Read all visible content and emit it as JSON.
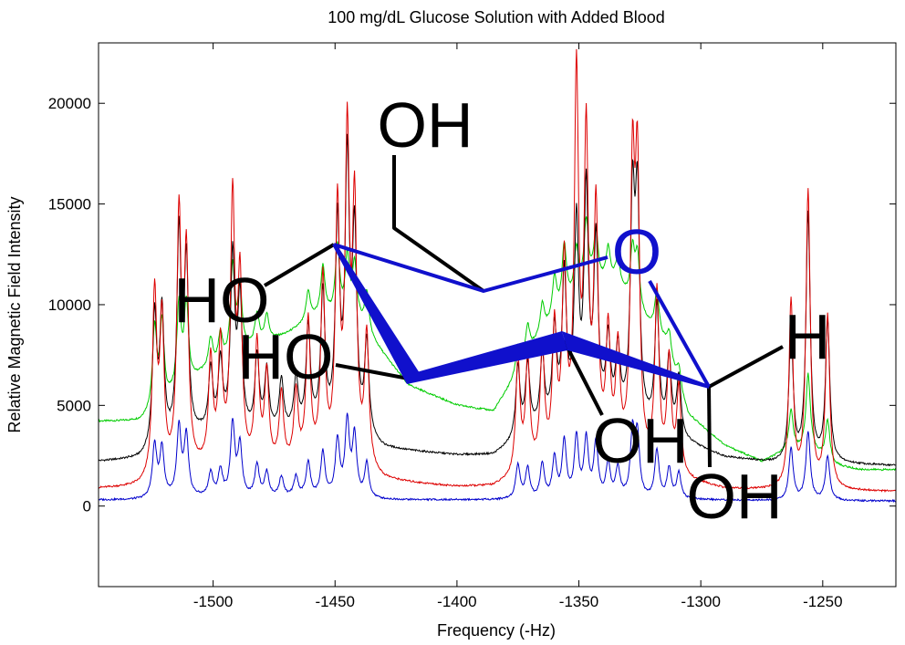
{
  "chart_data": {
    "type": "line",
    "title": "100 mg/dL Glucose Solution with Added Blood",
    "xlabel": "Frequency (-Hz)",
    "ylabel": "Relative Magnetic Field Intensity",
    "xlim": [
      -1547,
      -1220
    ],
    "ylim": [
      -4000,
      23000
    ],
    "x_ticks": [
      -1500,
      -1450,
      -1400,
      -1350,
      -1300,
      -1250
    ],
    "y_ticks": [
      0,
      5000,
      10000,
      15000,
      20000
    ],
    "x_tick_labels": [
      "-1500",
      "-1450",
      "-1400",
      "-1350",
      "-1300",
      "-1250"
    ],
    "y_tick_labels": [
      "0",
      "5000",
      "10000",
      "15000",
      "20000"
    ],
    "grid": false,
    "series": [
      {
        "color": "#00cc00",
        "baseline": [
          [
            -1547,
            4200
          ],
          [
            -1530,
            4200
          ],
          [
            -1520,
            5000
          ],
          [
            -1505,
            6500
          ],
          [
            -1495,
            7000
          ],
          [
            -1485,
            7800
          ],
          [
            -1470,
            8500
          ],
          [
            -1455,
            9500
          ],
          [
            -1440,
            9000
          ],
          [
            -1430,
            7500
          ],
          [
            -1420,
            6000
          ],
          [
            -1400,
            5000
          ],
          [
            -1385,
            4700
          ],
          [
            -1378,
            6000
          ],
          [
            -1368,
            8000
          ],
          [
            -1355,
            10000
          ],
          [
            -1345,
            11000
          ],
          [
            -1335,
            11000
          ],
          [
            -1325,
            9500
          ],
          [
            -1315,
            8000
          ],
          [
            -1305,
            4500
          ],
          [
            -1290,
            3000
          ],
          [
            -1275,
            2200
          ],
          [
            -1265,
            2700
          ],
          [
            -1255,
            2800
          ],
          [
            -1245,
            2000
          ],
          [
            -1235,
            1800
          ],
          [
            -1220,
            1800
          ]
        ],
        "peaks": [
          [
            -1524,
            4000
          ],
          [
            -1521,
            4000
          ],
          [
            -1514,
            4200
          ],
          [
            -1511,
            4000
          ],
          [
            -1501,
            1500
          ],
          [
            -1497,
            1500
          ],
          [
            -1492,
            4500
          ],
          [
            -1489,
            3200
          ],
          [
            -1482,
            1500
          ],
          [
            -1478,
            1300
          ],
          [
            -1461,
            1500
          ],
          [
            -1455,
            2300
          ],
          [
            -1449,
            3500
          ],
          [
            -1445,
            3000
          ],
          [
            -1442,
            2800
          ],
          [
            -1437,
            2000
          ],
          [
            -1375,
            1300
          ],
          [
            -1371,
            1500
          ],
          [
            -1365,
            1500
          ],
          [
            -1360,
            2000
          ],
          [
            -1356,
            3000
          ],
          [
            -1351,
            2200
          ],
          [
            -1347,
            3200
          ],
          [
            -1343,
            2500
          ],
          [
            -1338,
            1700
          ],
          [
            -1334,
            1300
          ],
          [
            -1328,
            2600
          ],
          [
            -1326,
            2600
          ],
          [
            -1318,
            2200
          ],
          [
            -1313,
            1300
          ],
          [
            -1309,
            1000
          ],
          [
            -1263,
            2000
          ],
          [
            -1256,
            3700
          ],
          [
            -1248,
            2000
          ]
        ]
      },
      {
        "color": "#000000",
        "baseline": [
          [
            -1547,
            2200
          ],
          [
            -1530,
            2300
          ],
          [
            -1520,
            2900
          ],
          [
            -1505,
            3500
          ],
          [
            -1495,
            3600
          ],
          [
            -1485,
            3500
          ],
          [
            -1470,
            3600
          ],
          [
            -1455,
            3800
          ],
          [
            -1440,
            3500
          ],
          [
            -1430,
            2800
          ],
          [
            -1400,
            2500
          ],
          [
            -1385,
            2500
          ],
          [
            -1370,
            3600
          ],
          [
            -1355,
            4200
          ],
          [
            -1340,
            4300
          ],
          [
            -1325,
            4000
          ],
          [
            -1310,
            3300
          ],
          [
            -1290,
            2400
          ],
          [
            -1270,
            2100
          ],
          [
            -1250,
            2100
          ],
          [
            -1220,
            2000
          ]
        ],
        "peaks": [
          [
            -1524,
            6500
          ],
          [
            -1521,
            6500
          ],
          [
            -1514,
            10000
          ],
          [
            -1511,
            8500
          ],
          [
            -1501,
            3000
          ],
          [
            -1497,
            3300
          ],
          [
            -1492,
            8500
          ],
          [
            -1489,
            6500
          ],
          [
            -1482,
            3700
          ],
          [
            -1478,
            3000
          ],
          [
            -1472,
            2500
          ],
          [
            -1466,
            2500
          ],
          [
            -1461,
            5000
          ],
          [
            -1455,
            6500
          ],
          [
            -1449,
            10000
          ],
          [
            -1445,
            13000
          ],
          [
            -1442,
            9500
          ],
          [
            -1437,
            4500
          ],
          [
            -1375,
            3500
          ],
          [
            -1371,
            3300
          ],
          [
            -1365,
            3400
          ],
          [
            -1360,
            4500
          ],
          [
            -1356,
            7000
          ],
          [
            -1351,
            9500
          ],
          [
            -1347,
            11000
          ],
          [
            -1343,
            8500
          ],
          [
            -1338,
            3700
          ],
          [
            -1334,
            3300
          ],
          [
            -1328,
            10500
          ],
          [
            -1326,
            10500
          ],
          [
            -1318,
            6000
          ],
          [
            -1313,
            3700
          ],
          [
            -1309,
            3000
          ],
          [
            -1263,
            6500
          ],
          [
            -1256,
            12300
          ],
          [
            -1248,
            7000
          ]
        ]
      },
      {
        "color": "#dd0000",
        "baseline": [
          [
            -1547,
            850
          ],
          [
            -1530,
            900
          ],
          [
            -1520,
            1300
          ],
          [
            -1505,
            1700
          ],
          [
            -1495,
            1800
          ],
          [
            -1485,
            1700
          ],
          [
            -1470,
            1800
          ],
          [
            -1455,
            1900
          ],
          [
            -1440,
            1700
          ],
          [
            -1430,
            1200
          ],
          [
            -1400,
            900
          ],
          [
            -1385,
            900
          ],
          [
            -1370,
            1500
          ],
          [
            -1355,
            2000
          ],
          [
            -1340,
            2100
          ],
          [
            -1325,
            1800
          ],
          [
            -1310,
            1300
          ],
          [
            -1290,
            800
          ],
          [
            -1270,
            750
          ],
          [
            -1250,
            750
          ],
          [
            -1220,
            700
          ]
        ],
        "peaks": [
          [
            -1524,
            9100
          ],
          [
            -1521,
            7500
          ],
          [
            -1514,
            12500
          ],
          [
            -1511,
            10500
          ],
          [
            -1501,
            5200
          ],
          [
            -1497,
            5800
          ],
          [
            -1492,
            13000
          ],
          [
            -1489,
            9000
          ],
          [
            -1482,
            6000
          ],
          [
            -1478,
            4500
          ],
          [
            -1472,
            3500
          ],
          [
            -1466,
            3500
          ],
          [
            -1461,
            7000
          ],
          [
            -1455,
            9000
          ],
          [
            -1449,
            12500
          ],
          [
            -1445,
            15800
          ],
          [
            -1442,
            12500
          ],
          [
            -1437,
            6500
          ],
          [
            -1375,
            5700
          ],
          [
            -1371,
            5500
          ],
          [
            -1365,
            5800
          ],
          [
            -1360,
            6500
          ],
          [
            -1356,
            9500
          ],
          [
            -1351,
            18800
          ],
          [
            -1347,
            15500
          ],
          [
            -1343,
            12000
          ],
          [
            -1338,
            6000
          ],
          [
            -1334,
            5200
          ],
          [
            -1328,
            13800
          ],
          [
            -1326,
            13800
          ],
          [
            -1318,
            8700
          ],
          [
            -1313,
            5500
          ],
          [
            -1309,
            4300
          ],
          [
            -1263,
            9300
          ],
          [
            -1256,
            14700
          ],
          [
            -1248,
            8500
          ]
        ]
      },
      {
        "color": "#0000cc",
        "baseline": [
          [
            -1547,
            300
          ],
          [
            -1530,
            300
          ],
          [
            -1520,
            400
          ],
          [
            -1505,
            400
          ],
          [
            -1485,
            400
          ],
          [
            -1455,
            400
          ],
          [
            -1430,
            300
          ],
          [
            -1400,
            300
          ],
          [
            -1380,
            300
          ],
          [
            -1355,
            300
          ],
          [
            -1325,
            300
          ],
          [
            -1300,
            300
          ],
          [
            -1270,
            250
          ],
          [
            -1220,
            250
          ]
        ],
        "peaks": [
          [
            -1524,
            2600
          ],
          [
            -1521,
            2400
          ],
          [
            -1514,
            3400
          ],
          [
            -1511,
            3000
          ],
          [
            -1501,
            1200
          ],
          [
            -1497,
            1300
          ],
          [
            -1492,
            3600
          ],
          [
            -1489,
            2500
          ],
          [
            -1482,
            1600
          ],
          [
            -1478,
            1200
          ],
          [
            -1472,
            1000
          ],
          [
            -1466,
            1000
          ],
          [
            -1461,
            1700
          ],
          [
            -1455,
            2200
          ],
          [
            -1449,
            2800
          ],
          [
            -1445,
            3700
          ],
          [
            -1442,
            3000
          ],
          [
            -1437,
            1700
          ],
          [
            -1375,
            1700
          ],
          [
            -1371,
            1500
          ],
          [
            -1365,
            1700
          ],
          [
            -1360,
            2000
          ],
          [
            -1356,
            2800
          ],
          [
            -1351,
            3000
          ],
          [
            -1347,
            2900
          ],
          [
            -1343,
            2700
          ],
          [
            -1338,
            1700
          ],
          [
            -1334,
            1500
          ],
          [
            -1328,
            3200
          ],
          [
            -1326,
            3000
          ],
          [
            -1318,
            2400
          ],
          [
            -1313,
            1500
          ],
          [
            -1309,
            1300
          ],
          [
            -1263,
            2600
          ],
          [
            -1256,
            3400
          ],
          [
            -1248,
            2200
          ]
        ]
      }
    ]
  },
  "molecule": {
    "ring_color": "#1010cc",
    "label_color": "#000000",
    "labels": {
      "ch2oh": "OH",
      "c4_oh": "HO",
      "c3_oh": "HO",
      "ring_oxygen": "O",
      "c1_h": "H",
      "c2_oh": "OH",
      "c1_oh": "OH"
    }
  }
}
